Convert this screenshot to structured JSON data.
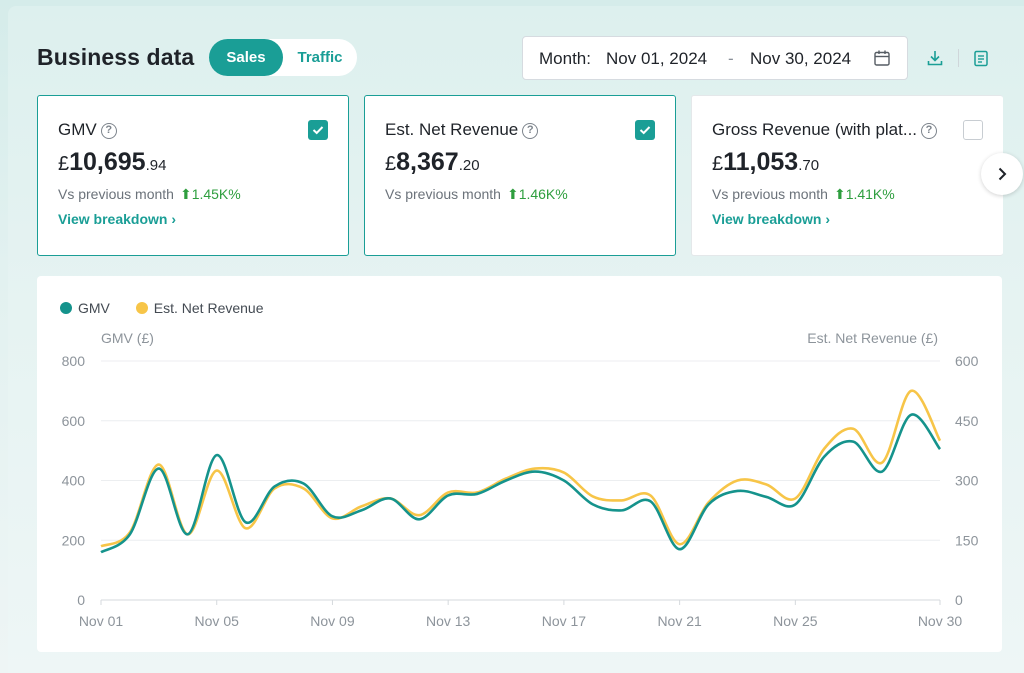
{
  "header": {
    "title": "Business data",
    "tabs": [
      {
        "label": "Sales",
        "active": true
      },
      {
        "label": "Traffic",
        "active": false
      }
    ],
    "date_range": {
      "label": "Month:",
      "start": "Nov 01, 2024",
      "separator": "-",
      "end": "Nov 30, 2024"
    },
    "tool_icons": [
      "download-icon",
      "report-icon"
    ]
  },
  "metrics": [
    {
      "title": "GMV",
      "checked": true,
      "currency": "£",
      "value_main": "10,695",
      "value_decimal": ".94",
      "comparison_label": "Vs previous month",
      "change": "1.45K%",
      "link": "View breakdown ›"
    },
    {
      "title": "Est. Net Revenue",
      "checked": true,
      "currency": "£",
      "value_main": "8,367",
      "value_decimal": ".20",
      "comparison_label": "Vs previous month",
      "change": "1.46K%",
      "link": ""
    },
    {
      "title": "Gross Revenue (with plat...",
      "checked": false,
      "currency": "£",
      "value_main": "11,053",
      "value_decimal": ".70",
      "comparison_label": "Vs previous month",
      "change": "1.41K%",
      "link": "View breakdown ›"
    }
  ],
  "colors": {
    "accent": "#1a9e96",
    "gmv": "#15938c",
    "net": "#f7c548",
    "positive": "#2e9e3e"
  },
  "chart_data": {
    "type": "line",
    "legend": [
      "GMV",
      "Est. Net Revenue"
    ],
    "legend_position": "top-left",
    "left_axis": {
      "title": "GMV (£)",
      "ticks": [
        "0",
        "200",
        "400",
        "600",
        "800"
      ],
      "range": [
        0,
        800
      ]
    },
    "right_axis": {
      "title": "Est. Net Revenue (£)",
      "ticks": [
        "0",
        "150",
        "300",
        "450",
        "600"
      ],
      "range": [
        0,
        600
      ]
    },
    "x": [
      "Nov 01",
      "Nov 02",
      "Nov 03",
      "Nov 04",
      "Nov 05",
      "Nov 06",
      "Nov 07",
      "Nov 08",
      "Nov 09",
      "Nov 10",
      "Nov 11",
      "Nov 12",
      "Nov 13",
      "Nov 14",
      "Nov 15",
      "Nov 16",
      "Nov 17",
      "Nov 18",
      "Nov 19",
      "Nov 20",
      "Nov 21",
      "Nov 22",
      "Nov 23",
      "Nov 24",
      "Nov 25",
      "Nov 26",
      "Nov 27",
      "Nov 28",
      "Nov 29",
      "Nov 30"
    ],
    "x_tick_labels": [
      "Nov 01",
      "Nov 05",
      "Nov 09",
      "Nov 13",
      "Nov 17",
      "Nov 21",
      "Nov 25",
      "Nov 30"
    ],
    "series": [
      {
        "name": "GMV",
        "axis": "left",
        "values": [
          160,
          220,
          440,
          220,
          485,
          260,
          380,
          390,
          280,
          300,
          340,
          270,
          350,
          355,
          400,
          430,
          400,
          320,
          300,
          330,
          170,
          320,
          365,
          345,
          320,
          480,
          530,
          430,
          620,
          505
        ]
      },
      {
        "name": "Est. Net Revenue",
        "axis": "right",
        "values": [
          135,
          170,
          340,
          165,
          325,
          180,
          280,
          280,
          205,
          235,
          255,
          213,
          270,
          270,
          305,
          330,
          320,
          260,
          250,
          262,
          140,
          245,
          300,
          290,
          255,
          380,
          430,
          345,
          525,
          400
        ]
      }
    ],
    "grid": true
  }
}
